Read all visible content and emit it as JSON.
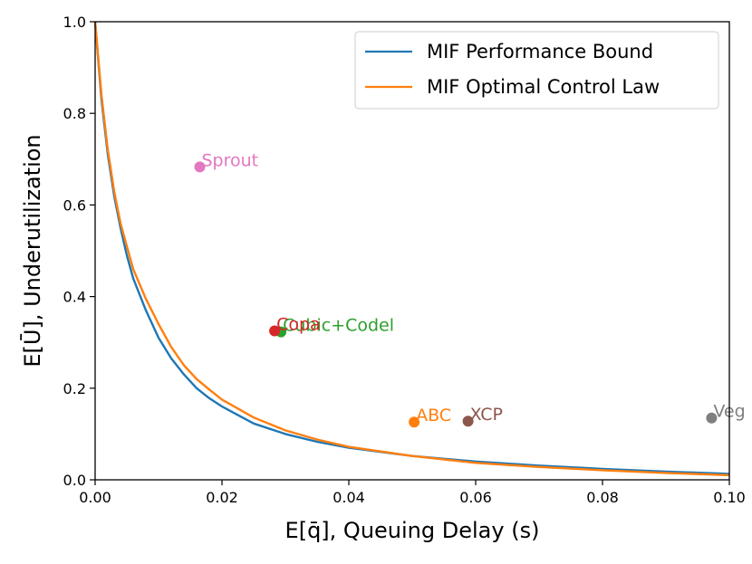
{
  "chart_data": {
    "type": "line",
    "title": "",
    "xlabel": "E[q̄], Queuing Delay (s)",
    "ylabel": "E[Ū], Underutilization",
    "xlim": [
      0.0,
      0.1
    ],
    "ylim": [
      0.0,
      1.0
    ],
    "xticks": [
      "0.00",
      "0.02",
      "0.04",
      "0.06",
      "0.08",
      "0.10"
    ],
    "yticks": [
      "0.0",
      "0.2",
      "0.4",
      "0.6",
      "0.8",
      "1.0"
    ],
    "grid": false,
    "legend_position": "top-right",
    "series": [
      {
        "name": "MIF Performance Bound",
        "color": "#1f77b4",
        "x": [
          0.0,
          0.001,
          0.002,
          0.003,
          0.004,
          0.005,
          0.006,
          0.008,
          0.01,
          0.012,
          0.014,
          0.016,
          0.018,
          0.02,
          0.025,
          0.03,
          0.035,
          0.04,
          0.05,
          0.06,
          0.07,
          0.08,
          0.09,
          0.1
        ],
        "values": [
          1.0,
          0.83,
          0.71,
          0.62,
          0.55,
          0.49,
          0.44,
          0.37,
          0.31,
          0.265,
          0.23,
          0.2,
          0.178,
          0.16,
          0.123,
          0.1,
          0.083,
          0.07,
          0.052,
          0.04,
          0.031,
          0.024,
          0.018,
          0.013
        ]
      },
      {
        "name": "MIF Optimal Control Law",
        "color": "#ff7f0e",
        "x": [
          0.0,
          0.001,
          0.002,
          0.003,
          0.004,
          0.005,
          0.006,
          0.008,
          0.01,
          0.012,
          0.014,
          0.016,
          0.018,
          0.02,
          0.025,
          0.03,
          0.035,
          0.04,
          0.05,
          0.06,
          0.07,
          0.08,
          0.09,
          0.1
        ],
        "values": [
          1.0,
          0.84,
          0.72,
          0.63,
          0.56,
          0.51,
          0.46,
          0.395,
          0.34,
          0.29,
          0.25,
          0.22,
          0.197,
          0.175,
          0.136,
          0.108,
          0.088,
          0.072,
          0.052,
          0.037,
          0.028,
          0.021,
          0.015,
          0.01
        ]
      }
    ],
    "points": [
      {
        "label": "Sprout",
        "x": 0.0165,
        "y": 0.683,
        "color": "#e377c2"
      },
      {
        "label": "Cubic+Codel",
        "x": 0.0293,
        "y": 0.323,
        "color": "#2ca02c"
      },
      {
        "label": "Copa",
        "x": 0.0283,
        "y": 0.325,
        "color": "#d62728"
      },
      {
        "label": "ABC",
        "x": 0.0503,
        "y": 0.126,
        "color": "#ff7f0e"
      },
      {
        "label": "XCP",
        "x": 0.0588,
        "y": 0.128,
        "color": "#8c564b"
      },
      {
        "label": "Veg",
        "x": 0.0972,
        "y": 0.135,
        "color": "#7f7f7f"
      }
    ]
  }
}
